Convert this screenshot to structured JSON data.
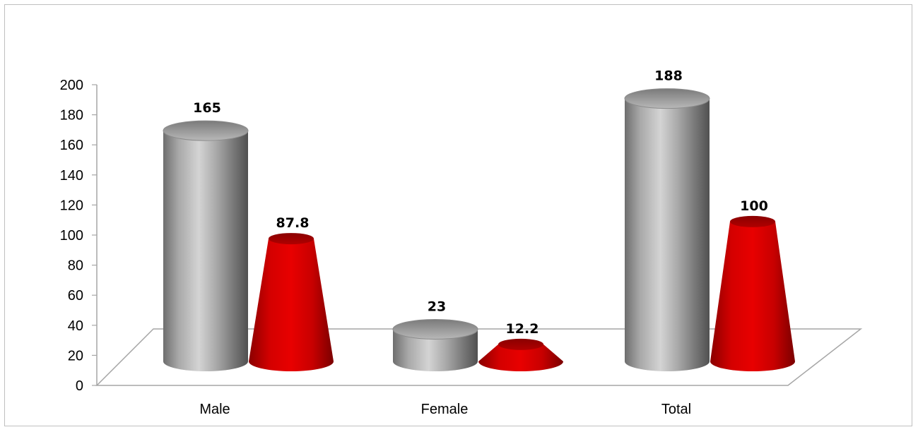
{
  "chart_data": {
    "type": "bar",
    "style": "3d-cylinder-and-cone",
    "title": "",
    "xlabel": "",
    "ylabel": "",
    "ylim": [
      0,
      200
    ],
    "yticks": [
      0,
      20,
      40,
      60,
      80,
      100,
      120,
      140,
      160,
      180,
      200
    ],
    "categories": [
      "Male",
      "Female",
      "Total"
    ],
    "series": [
      {
        "shape": "cylinder",
        "color": "#a6a6a6",
        "values": [
          165,
          23,
          188
        ],
        "labels": [
          "165",
          "23",
          "188"
        ]
      },
      {
        "shape": "cone",
        "color": "#d40000",
        "values": [
          87.8,
          12.2,
          100
        ],
        "labels": [
          "87.8",
          "12.2",
          "100"
        ]
      }
    ],
    "grid": false,
    "legend": "none"
  }
}
